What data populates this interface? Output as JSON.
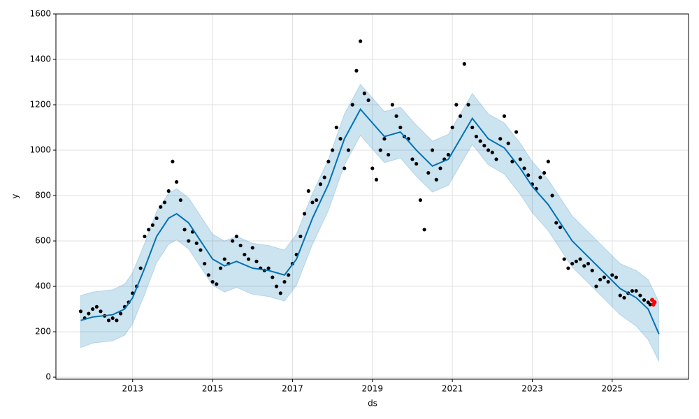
{
  "chart_data": {
    "type": "forecast",
    "x_label": "ds",
    "y_label": "y",
    "xlim": [
      2011.08,
      2026.91
    ],
    "ylim": [
      -9,
      1600
    ],
    "xticks": [
      2013,
      2015,
      2017,
      2019,
      2021,
      2023,
      2025
    ],
    "yticks": [
      0,
      200,
      400,
      600,
      800,
      1000,
      1200,
      1400,
      1600
    ],
    "grid": true,
    "band": {
      "color": "#0072B2",
      "x": [
        2011.7,
        2012.0,
        2012.5,
        2012.8,
        2013.0,
        2013.3,
        2013.6,
        2013.9,
        2014.1,
        2014.4,
        2014.7,
        2015.0,
        2015.3,
        2015.6,
        2016.0,
        2016.4,
        2016.8,
        2017.1,
        2017.5,
        2017.9,
        2018.3,
        2018.7,
        2019.0,
        2019.3,
        2019.7,
        2020.1,
        2020.5,
        2020.9,
        2021.3,
        2021.5,
        2021.9,
        2022.3,
        2022.7,
        2023.0,
        2023.4,
        2023.7,
        2024.0,
        2024.4,
        2024.8,
        2025.2,
        2025.6,
        2025.9,
        2026.17
      ],
      "lower": [
        130,
        150,
        160,
        185,
        235,
        365,
        505,
        585,
        605,
        565,
        485,
        405,
        375,
        395,
        365,
        355,
        335,
        405,
        585,
        735,
        935,
        1065,
        1005,
        945,
        965,
        885,
        815,
        845,
        965,
        1025,
        935,
        895,
        805,
        725,
        645,
        565,
        485,
        415,
        345,
        275,
        225,
        165,
        70
      ],
      "upper": [
        360,
        375,
        385,
        410,
        460,
        590,
        730,
        810,
        830,
        790,
        710,
        630,
        600,
        620,
        590,
        580,
        560,
        630,
        810,
        960,
        1160,
        1290,
        1230,
        1170,
        1190,
        1110,
        1040,
        1070,
        1190,
        1250,
        1160,
        1120,
        1030,
        950,
        870,
        790,
        710,
        640,
        570,
        500,
        470,
        430,
        330
      ]
    },
    "forecast": {
      "color": "#0072B2",
      "x": [
        2011.7,
        2012.0,
        2012.5,
        2012.8,
        2013.0,
        2013.3,
        2013.6,
        2013.9,
        2014.1,
        2014.4,
        2014.7,
        2015.0,
        2015.3,
        2015.6,
        2016.0,
        2016.4,
        2016.8,
        2017.1,
        2017.5,
        2017.9,
        2018.3,
        2018.7,
        2019.0,
        2019.3,
        2019.7,
        2020.1,
        2020.5,
        2020.9,
        2021.3,
        2021.5,
        2021.9,
        2022.3,
        2022.7,
        2023.0,
        2023.4,
        2023.7,
        2024.0,
        2024.4,
        2024.8,
        2025.2,
        2025.6,
        2025.9,
        2026.17
      ],
      "values": [
        250,
        265,
        275,
        300,
        350,
        480,
        620,
        700,
        720,
        680,
        600,
        520,
        490,
        510,
        480,
        470,
        450,
        520,
        700,
        850,
        1050,
        1180,
        1120,
        1060,
        1080,
        1000,
        930,
        960,
        1080,
        1140,
        1050,
        1010,
        920,
        840,
        760,
        680,
        600,
        530,
        460,
        390,
        350,
        300,
        190
      ]
    },
    "observed": {
      "color": "#000000",
      "x": [
        2011.7,
        2011.8,
        2011.9,
        2012.0,
        2012.1,
        2012.2,
        2012.3,
        2012.4,
        2012.5,
        2012.6,
        2012.7,
        2012.8,
        2012.9,
        2013.0,
        2013.1,
        2013.2,
        2013.3,
        2013.4,
        2013.5,
        2013.6,
        2013.7,
        2013.8,
        2013.9,
        2014.0,
        2014.1,
        2014.2,
        2014.3,
        2014.4,
        2014.5,
        2014.6,
        2014.7,
        2014.8,
        2014.9,
        2015.0,
        2015.1,
        2015.2,
        2015.3,
        2015.4,
        2015.5,
        2015.6,
        2015.7,
        2015.8,
        2015.9,
        2016.0,
        2016.1,
        2016.2,
        2016.3,
        2016.4,
        2016.5,
        2016.6,
        2016.7,
        2016.8,
        2016.9,
        2017.0,
        2017.1,
        2017.2,
        2017.3,
        2017.4,
        2017.5,
        2017.6,
        2017.7,
        2017.8,
        2017.9,
        2018.0,
        2018.1,
        2018.2,
        2018.3,
        2018.4,
        2018.5,
        2018.6,
        2018.7,
        2018.8,
        2018.9,
        2019.0,
        2019.1,
        2019.2,
        2019.3,
        2019.4,
        2019.5,
        2019.6,
        2019.7,
        2019.8,
        2019.9,
        2020.0,
        2020.1,
        2020.2,
        2020.3,
        2020.4,
        2020.5,
        2020.6,
        2020.7,
        2020.8,
        2020.9,
        2021.0,
        2021.1,
        2021.2,
        2021.3,
        2021.4,
        2021.5,
        2021.6,
        2021.7,
        2021.8,
        2021.9,
        2022.0,
        2022.1,
        2022.2,
        2022.3,
        2022.4,
        2022.5,
        2022.6,
        2022.7,
        2022.8,
        2022.9,
        2023.0,
        2023.1,
        2023.2,
        2023.3,
        2023.4,
        2023.5,
        2023.6,
        2023.7,
        2023.8,
        2023.9,
        2024.0,
        2024.1,
        2024.2,
        2024.3,
        2024.4,
        2024.5,
        2024.6,
        2024.7,
        2024.8,
        2024.9,
        2025.0,
        2025.1,
        2025.2,
        2025.3,
        2025.4,
        2025.5,
        2025.6,
        2025.7,
        2025.8,
        2025.9,
        2025.95
      ],
      "values": [
        290,
        260,
        280,
        300,
        310,
        290,
        270,
        250,
        260,
        250,
        280,
        310,
        330,
        370,
        400,
        480,
        620,
        650,
        670,
        700,
        750,
        770,
        820,
        950,
        860,
        780,
        650,
        600,
        640,
        590,
        560,
        500,
        450,
        420,
        410,
        480,
        520,
        500,
        600,
        620,
        580,
        540,
        520,
        570,
        510,
        480,
        470,
        480,
        440,
        400,
        370,
        420,
        450,
        500,
        540,
        620,
        720,
        820,
        770,
        780,
        850,
        880,
        950,
        1000,
        1100,
        1050,
        920,
        1000,
        1200,
        1350,
        1480,
        1250,
        1220,
        920,
        870,
        1000,
        1050,
        980,
        1200,
        1150,
        1100,
        1060,
        1050,
        960,
        940,
        780,
        650,
        900,
        1000,
        870,
        920,
        960,
        980,
        1100,
        1200,
        1150,
        1380,
        1200,
        1100,
        1060,
        1040,
        1020,
        1000,
        990,
        960,
        1050,
        1150,
        1030,
        950,
        1080,
        960,
        920,
        890,
        850,
        830,
        880,
        900,
        950,
        800,
        680,
        660,
        520,
        480,
        500,
        510,
        520,
        490,
        500,
        470,
        400,
        430,
        440,
        420,
        450,
        440,
        360,
        350,
        370,
        380,
        380,
        360,
        340,
        330,
        320
      ]
    },
    "recent": {
      "color": "#ff0000",
      "x": [
        2026.0,
        2026.03,
        2026.06
      ],
      "values": [
        340,
        320,
        330
      ]
    }
  }
}
